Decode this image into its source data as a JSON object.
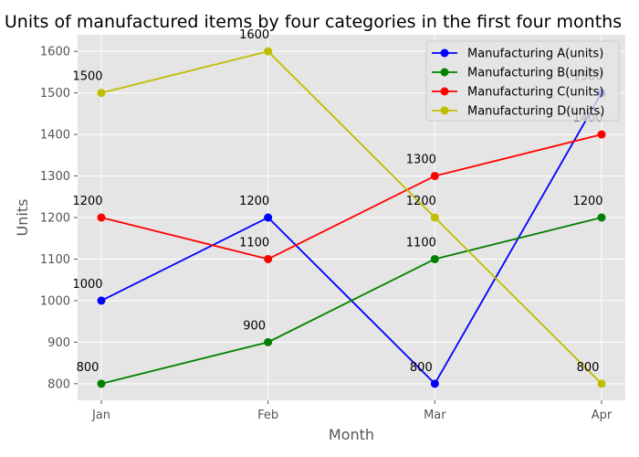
{
  "chart_data": {
    "type": "line",
    "title": "Units of manufactured items by four categories in the first four months",
    "xlabel": "Month",
    "ylabel": "Units",
    "categories": [
      "Jan",
      "Feb",
      "Mar",
      "Apr"
    ],
    "ylim": [
      760,
      1640
    ],
    "yticks": [
      800,
      900,
      1000,
      1100,
      1200,
      1300,
      1400,
      1500,
      1600
    ],
    "grid": true,
    "legend_position": "top-right",
    "series": [
      {
        "name": "Manufacturing A(units)",
        "color": "#0000ff",
        "values": [
          1000,
          1200,
          800,
          1500
        ]
      },
      {
        "name": "Manufacturing B(units)",
        "color": "#008000",
        "values": [
          800,
          900,
          1100,
          1200
        ]
      },
      {
        "name": "Manufacturing C(units)",
        "color": "#ff0000",
        "values": [
          1200,
          1100,
          1300,
          1400
        ]
      },
      {
        "name": "Manufacturing D(units)",
        "color": "#bfbf00",
        "values": [
          1500,
          1600,
          1200,
          800
        ]
      }
    ]
  }
}
